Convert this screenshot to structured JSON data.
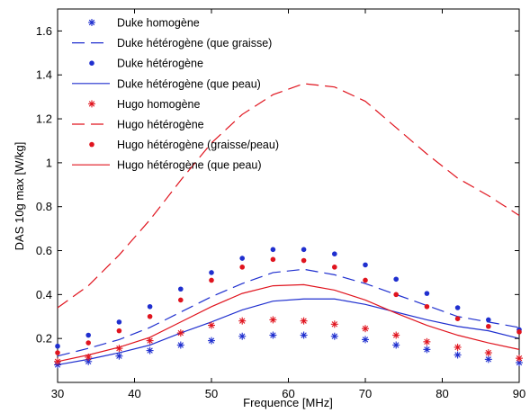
{
  "chart_data": {
    "type": "line",
    "xlabel": "Frequence [MHz]",
    "ylabel": "DAS 10g max [W/kg]",
    "xlim": [
      30,
      90
    ],
    "ylim": [
      0,
      1.7
    ],
    "xticks": [
      30,
      40,
      50,
      60,
      70,
      80,
      90
    ],
    "yticks": [
      0.2,
      0.4,
      0.6,
      0.8,
      1,
      1.2,
      1.4,
      1.6
    ],
    "xtick_labels": [
      "30",
      "40",
      "50",
      "60",
      "70",
      "80",
      "90"
    ],
    "ytick_labels": [
      "0.2",
      "0.4",
      "0.6",
      "0.8",
      "1",
      "1.2",
      "1.4",
      "1.6"
    ],
    "grid": false,
    "legend_position": "top-left",
    "series": [
      {
        "name": "Duke homogène",
        "color": "#1f2fcf",
        "style": "star-markers",
        "x": [
          30,
          34,
          38,
          42,
          46,
          50,
          54,
          58,
          62,
          66,
          70,
          74,
          78,
          82,
          86,
          90
        ],
        "y": [
          0.08,
          0.095,
          0.12,
          0.145,
          0.17,
          0.19,
          0.21,
          0.215,
          0.215,
          0.21,
          0.195,
          0.17,
          0.15,
          0.125,
          0.105,
          0.09
        ]
      },
      {
        "name": "Duke hétérogène (que graisse)",
        "color": "#1f2fcf",
        "style": "dashed-line",
        "x": [
          30,
          34,
          38,
          42,
          46,
          50,
          54,
          58,
          62,
          66,
          70,
          74,
          78,
          82,
          86,
          90
        ],
        "y": [
          0.12,
          0.155,
          0.195,
          0.25,
          0.32,
          0.39,
          0.45,
          0.5,
          0.515,
          0.49,
          0.45,
          0.4,
          0.35,
          0.3,
          0.275,
          0.25
        ]
      },
      {
        "name": "Duke hétérogène",
        "color": "#1f2fcf",
        "style": "dot-markers",
        "x": [
          30,
          34,
          38,
          42,
          46,
          50,
          54,
          58,
          62,
          66,
          70,
          74,
          78,
          82,
          86,
          90
        ],
        "y": [
          0.165,
          0.215,
          0.275,
          0.345,
          0.425,
          0.5,
          0.565,
          0.605,
          0.605,
          0.585,
          0.535,
          0.47,
          0.405,
          0.34,
          0.285,
          0.24
        ]
      },
      {
        "name": "Duke hétérogène (que peau)",
        "color": "#1f2fcf",
        "style": "solid-line",
        "x": [
          30,
          34,
          38,
          42,
          46,
          50,
          54,
          58,
          62,
          66,
          70,
          74,
          78,
          82,
          86,
          90
        ],
        "y": [
          0.08,
          0.105,
          0.135,
          0.17,
          0.225,
          0.275,
          0.33,
          0.37,
          0.38,
          0.38,
          0.355,
          0.32,
          0.285,
          0.255,
          0.235,
          0.2
        ]
      },
      {
        "name": "Hugo homogène",
        "color": "#e0141e",
        "style": "star-markers",
        "x": [
          30,
          34,
          38,
          42,
          46,
          50,
          54,
          58,
          62,
          66,
          70,
          74,
          78,
          82,
          86,
          90
        ],
        "y": [
          0.095,
          0.115,
          0.155,
          0.19,
          0.225,
          0.26,
          0.28,
          0.285,
          0.28,
          0.265,
          0.245,
          0.215,
          0.185,
          0.16,
          0.135,
          0.11
        ]
      },
      {
        "name": "Hugo hétérogène",
        "color": "#e0141e",
        "style": "dashed-line",
        "x": [
          30,
          34,
          38,
          42,
          46,
          50,
          54,
          58,
          62,
          66,
          70,
          74,
          78,
          82,
          86,
          90
        ],
        "y": [
          0.34,
          0.44,
          0.58,
          0.74,
          0.92,
          1.09,
          1.22,
          1.31,
          1.36,
          1.345,
          1.28,
          1.16,
          1.04,
          0.93,
          0.85,
          0.76
        ]
      },
      {
        "name": "Hugo hétérogène (graisse/peau)",
        "color": "#e0141e",
        "style": "dot-markers",
        "x": [
          30,
          34,
          38,
          42,
          46,
          50,
          54,
          58,
          62,
          66,
          70,
          74,
          78,
          82,
          86,
          90
        ],
        "y": [
          0.135,
          0.18,
          0.235,
          0.3,
          0.375,
          0.465,
          0.525,
          0.56,
          0.555,
          0.525,
          0.465,
          0.4,
          0.345,
          0.29,
          0.255,
          0.23
        ]
      },
      {
        "name": "Hugo hétérogène (que peau)",
        "color": "#e0141e",
        "style": "solid-line",
        "x": [
          30,
          34,
          38,
          42,
          46,
          50,
          54,
          58,
          62,
          66,
          70,
          74,
          78,
          82,
          86,
          90
        ],
        "y": [
          0.095,
          0.125,
          0.16,
          0.205,
          0.275,
          0.345,
          0.405,
          0.44,
          0.445,
          0.42,
          0.375,
          0.315,
          0.26,
          0.215,
          0.18,
          0.15
        ]
      }
    ]
  }
}
